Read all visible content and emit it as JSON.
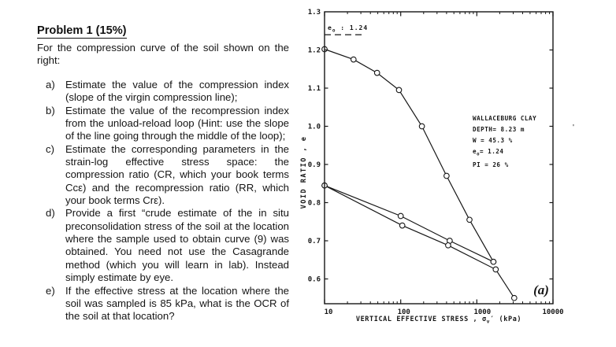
{
  "document": {
    "title": "Problem 1 (15%)",
    "intro": "For the compression curve of the soil shown on the right:",
    "items": [
      {
        "label": "a)",
        "text": "Estimate the value of the compression index (slope of the virgin compression line);"
      },
      {
        "label": "b)",
        "text": "Estimate the value of the recompression index from the unload-reload loop (Hint: use the slope of the line going through the middle of the loop);"
      },
      {
        "label": "c)",
        "text": "Estimate the corresponding parameters in the strain-log effective stress space: the compression ratio (CR, which your book terms Ccε) and the recompression ratio (RR, which your book terms Crε)."
      },
      {
        "label": "d)",
        "text": "Provide a first “crude estimate of the in situ preconsolidation stress of the soil at the location where the sample used to obtain curve (9) was obtained. You need not use the Casagrande method (which you will learn in lab). Instead simply estimate by eye."
      },
      {
        "label": "e)",
        "text": "If the effective stress at the location where the soil was sampled is 85 kPa, what is the OCR of the soil at that location?"
      }
    ]
  },
  "chart_data": {
    "type": "line",
    "title": "",
    "xlabel": "VERTICAL EFFECTIVE STRESS , σ{v}′ (kPa)",
    "ylabel": "VOID RATIO , e",
    "xscale": "log",
    "xlim": [
      10,
      10000
    ],
    "ylim": [
      0.535,
      1.3
    ],
    "x_ticks": [
      10,
      100,
      1000,
      10000
    ],
    "x_tick_labels": [
      "10",
      "100",
      "1000",
      "10000"
    ],
    "y_ticks": [
      0.6,
      0.7,
      0.8,
      0.9,
      1.0,
      1.1,
      1.2,
      1.3
    ],
    "y_tick_labels": [
      "0.6",
      "0.7",
      "0.8",
      "0.9",
      "1.0",
      "1.1",
      "1.2",
      "1.3"
    ],
    "grid": false,
    "legend": false,
    "line_color": "#161616",
    "marker": "open-circle",
    "e0_line": {
      "label": "e{o} : 1.24",
      "value": 1.24
    },
    "annotation": {
      "lines": [
        "WALLACEBURG  CLAY",
        "DEPTH= 8.23 m",
        "W = 45.3 %",
        "e{o}= 1.24",
        "PI = 26 %"
      ]
    },
    "panel_label": "(a)",
    "series": [
      {
        "name": "virgin-compression",
        "points": [
          [
            10,
            1.202
          ],
          [
            24,
            1.175
          ],
          [
            49,
            1.14
          ],
          [
            95,
            1.095
          ],
          [
            190,
            1.0
          ],
          [
            400,
            0.87
          ],
          [
            800,
            0.755
          ],
          [
            1650,
            0.645
          ]
        ]
      },
      {
        "name": "unload",
        "points": [
          [
            1650,
            0.645
          ],
          [
            440,
            0.7
          ],
          [
            100,
            0.765
          ],
          [
            10,
            0.845
          ]
        ]
      },
      {
        "name": "reload",
        "points": [
          [
            10,
            0.845
          ],
          [
            105,
            0.74
          ],
          [
            420,
            0.688
          ],
          [
            1770,
            0.625
          ],
          [
            3100,
            0.55
          ]
        ]
      }
    ]
  }
}
